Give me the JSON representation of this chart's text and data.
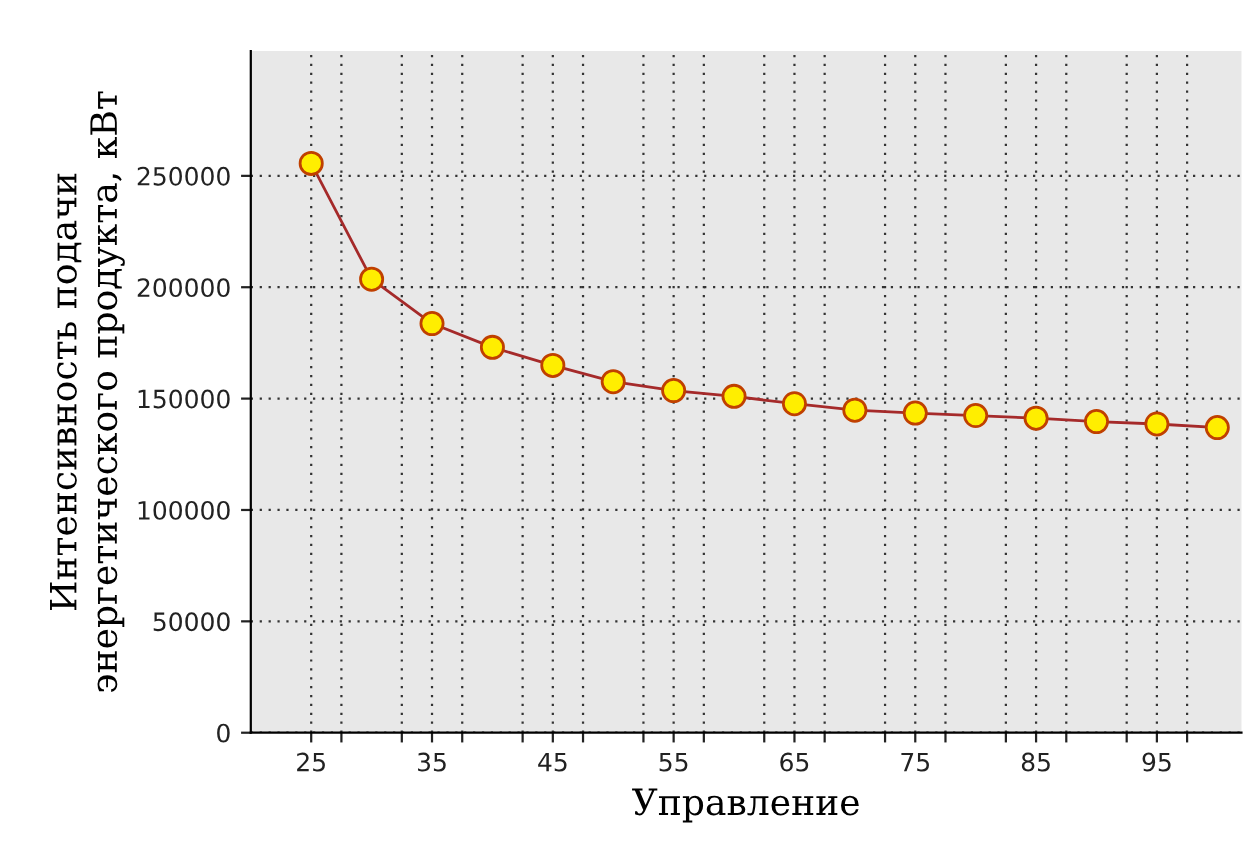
{
  "chart_data": {
    "type": "line",
    "xlabel": "Управление",
    "ylabel": "Интенсивность подачи\nэнергетического продукта, кВт",
    "x": [
      25,
      30,
      35,
      40,
      45,
      50,
      55,
      60,
      65,
      70,
      75,
      80,
      85,
      90,
      95,
      100
    ],
    "series": [
      {
        "color": "#a52a2a",
        "values": [
          255600,
          203600,
          183700,
          173000,
          164900,
          157600,
          153600,
          151000,
          147700,
          144800,
          143500,
          142400,
          141200,
          139700,
          138600,
          137000
        ]
      }
    ],
    "xlim": [
      20,
      102
    ],
    "xticks": [
      25,
      {
        "value": 27.5,
        "label": null
      },
      {
        "value": 32.5,
        "label": null
      },
      35,
      {
        "value": 37.5,
        "label": null
      },
      {
        "value": 42.5,
        "label": null
      },
      45,
      {
        "value": 47.5,
        "label": null
      },
      {
        "value": 52.5,
        "label": null
      },
      55,
      {
        "value": 57.5,
        "label": null
      },
      {
        "value": 62.5,
        "label": null
      },
      65,
      {
        "value": 67.5,
        "label": null
      },
      {
        "value": 72.5,
        "label": null
      },
      75,
      {
        "value": 77.5,
        "label": null
      },
      {
        "value": 82.5,
        "label": null
      },
      85,
      {
        "value": 87.5,
        "label": null
      },
      {
        "value": 92.5,
        "label": null
      },
      95,
      {
        "value": 97.5,
        "label": null
      }
    ],
    "ylim": [
      0,
      306000
    ],
    "yticks": [
      0,
      50000,
      100000,
      150000,
      200000,
      250000
    ],
    "grid": true,
    "marker": "circle",
    "line_style": "solid",
    "legend": false
  }
}
